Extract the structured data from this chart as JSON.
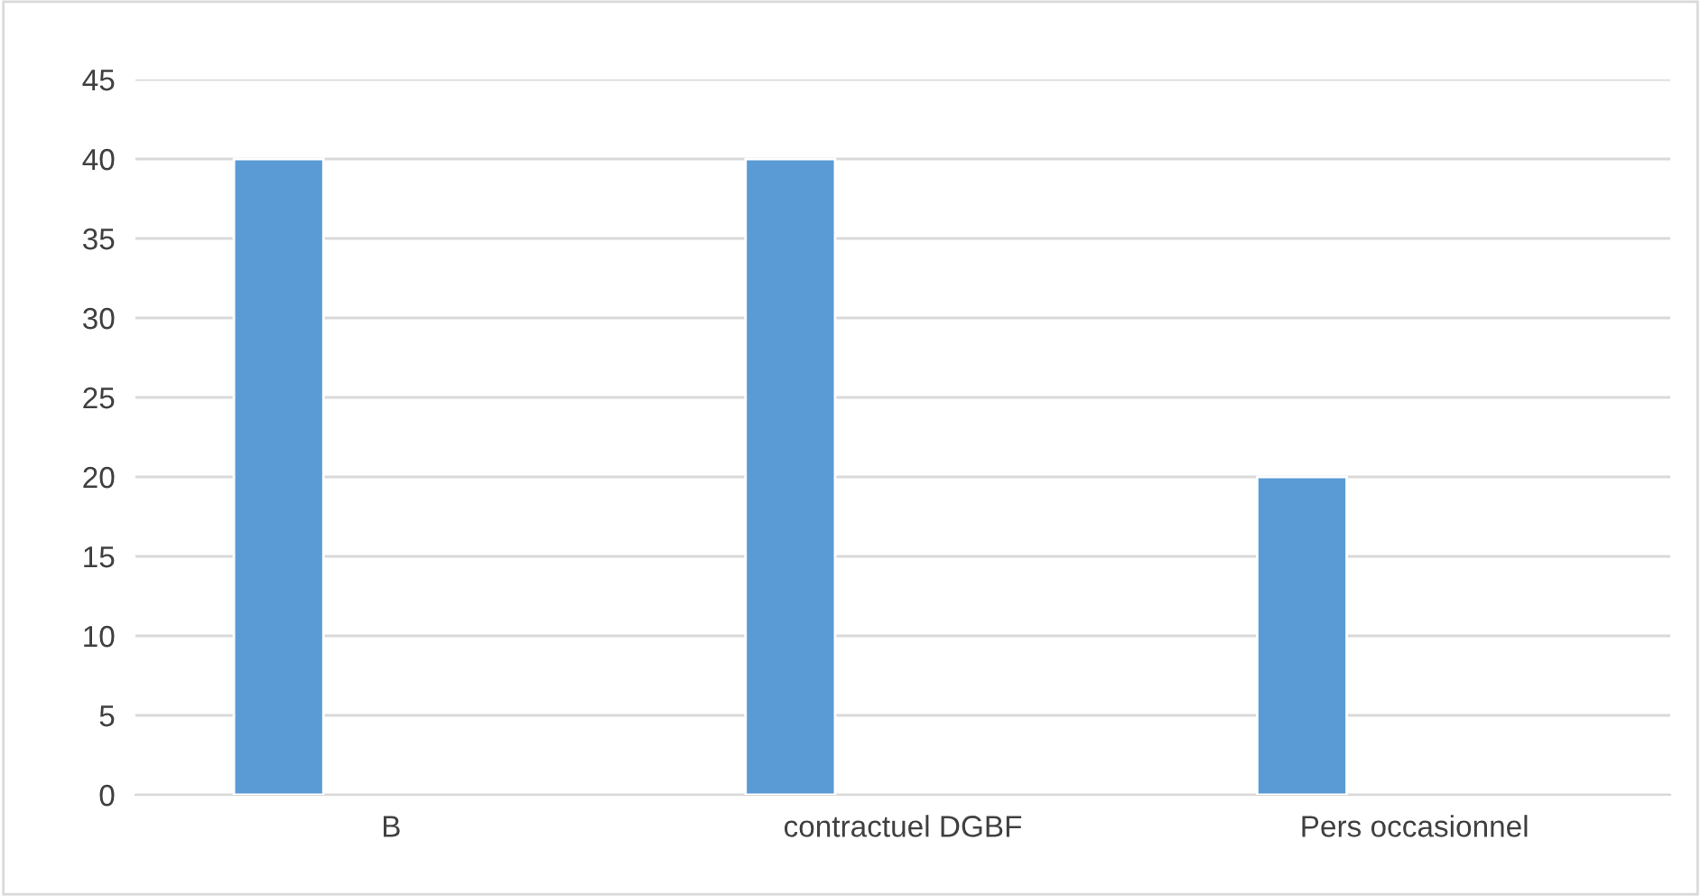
{
  "chart_data": {
    "type": "bar",
    "categories": [
      "B",
      "contractuel DGBF",
      "Pers occasionnel"
    ],
    "values": [
      40,
      40,
      20
    ],
    "color": "#5b9bd5",
    "ylim": [
      0,
      45
    ],
    "yticks": [
      0,
      5,
      10,
      15,
      20,
      25,
      30,
      35,
      40,
      45
    ],
    "grid": "y"
  }
}
